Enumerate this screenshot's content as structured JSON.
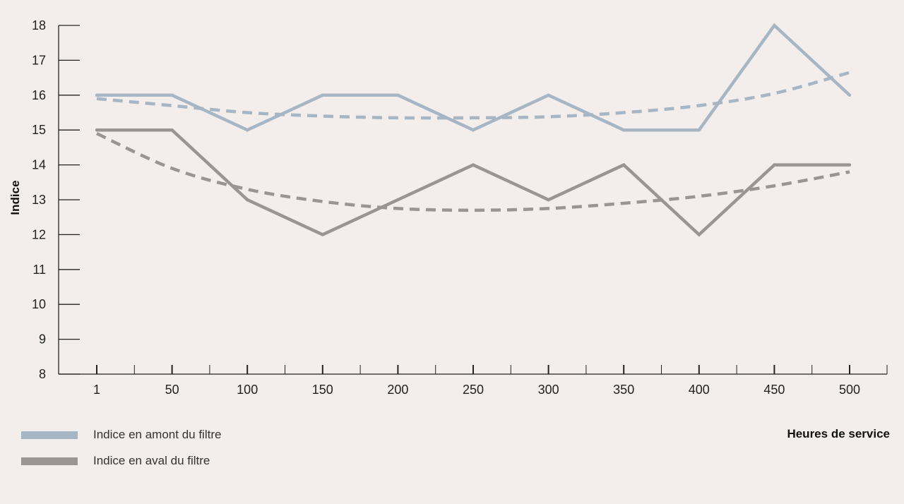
{
  "chart_data": {
    "type": "line",
    "title": "",
    "xlabel": "Heures de service",
    "ylabel": "Indice",
    "categories": [
      "1",
      "50",
      "100",
      "150",
      "200",
      "250",
      "300",
      "350",
      "400",
      "450",
      "500"
    ],
    "ylim": [
      8,
      18
    ],
    "yticks": [
      8,
      9,
      10,
      11,
      12,
      13,
      14,
      15,
      16,
      17,
      18
    ],
    "grid": false,
    "legend_position": "bottom-left",
    "series": [
      {
        "name": "Indice en amont du filtre",
        "color": "#a7b6c4",
        "values": [
          16,
          16,
          15,
          16,
          16,
          15,
          16,
          15,
          15,
          18,
          16
        ],
        "trend": [
          15.9,
          15.7,
          15.5,
          15.4,
          15.35,
          15.35,
          15.38,
          15.5,
          15.7,
          16.05,
          16.65
        ]
      },
      {
        "name": "Indice en aval du filtre",
        "color": "#9a9593",
        "values": [
          15,
          15,
          13,
          12,
          13,
          14,
          13,
          14,
          12,
          14,
          14
        ],
        "trend": [
          14.9,
          13.9,
          13.3,
          12.95,
          12.75,
          12.7,
          12.75,
          12.9,
          13.1,
          13.4,
          13.8
        ]
      }
    ]
  }
}
